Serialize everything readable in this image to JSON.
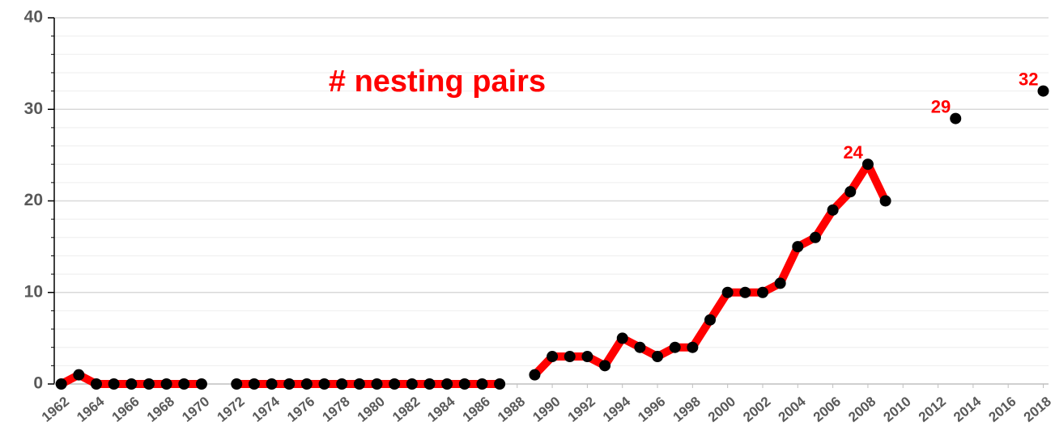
{
  "chart_data": {
    "type": "line",
    "title": "# nesting pairs",
    "x": [
      1962,
      1963,
      1964,
      1965,
      1966,
      1967,
      1968,
      1969,
      1970,
      1971,
      1972,
      1973,
      1974,
      1975,
      1976,
      1977,
      1978,
      1979,
      1980,
      1981,
      1982,
      1983,
      1984,
      1985,
      1986,
      1987,
      1988,
      1989,
      1990,
      1991,
      1992,
      1993,
      1994,
      1995,
      1996,
      1997,
      1998,
      1999,
      2000,
      2001,
      2002,
      2003,
      2004,
      2005,
      2006,
      2007,
      2008,
      2009,
      2010,
      2011,
      2012,
      2013,
      2014,
      2015,
      2016,
      2017,
      2018
    ],
    "series": [
      {
        "color": "#ff0000",
        "marker_color": "#000000",
        "values": [
          0,
          1,
          0,
          0,
          0,
          0,
          0,
          0,
          0,
          null,
          0,
          0,
          0,
          0,
          0,
          0,
          0,
          0,
          0,
          0,
          0,
          0,
          0,
          0,
          0,
          0,
          null,
          1,
          3,
          3,
          3,
          2,
          5,
          4,
          3,
          4,
          4,
          7,
          10,
          10,
          10,
          11,
          15,
          16,
          19,
          21,
          24,
          20,
          null,
          null,
          null,
          29,
          null,
          null,
          null,
          null,
          32
        ],
        "value_labels": [
          null,
          null,
          null,
          null,
          null,
          null,
          null,
          null,
          null,
          null,
          null,
          null,
          null,
          null,
          null,
          null,
          null,
          null,
          null,
          null,
          null,
          null,
          null,
          null,
          null,
          null,
          null,
          null,
          null,
          null,
          null,
          null,
          null,
          null,
          null,
          null,
          null,
          null,
          null,
          null,
          null,
          null,
          null,
          null,
          null,
          null,
          "24",
          null,
          null,
          null,
          null,
          "29",
          null,
          null,
          null,
          null,
          "32"
        ]
      }
    ],
    "xlim": [
      1961.6,
      2018.3
    ],
    "xticks": [
      1962,
      1964,
      1966,
      1968,
      1970,
      1972,
      1974,
      1976,
      1978,
      1980,
      1982,
      1984,
      1986,
      1988,
      1990,
      1992,
      1994,
      1996,
      1998,
      2000,
      2002,
      2004,
      2006,
      2008,
      2010,
      2012,
      2014,
      2016,
      2018
    ],
    "ylim": [
      0,
      40
    ],
    "yticks": [
      0,
      10,
      20,
      30,
      40
    ],
    "yticks_minor": [
      2,
      4,
      6,
      8,
      12,
      14,
      16,
      18,
      22,
      24,
      26,
      28,
      32,
      34,
      36,
      38
    ],
    "grid": true
  }
}
